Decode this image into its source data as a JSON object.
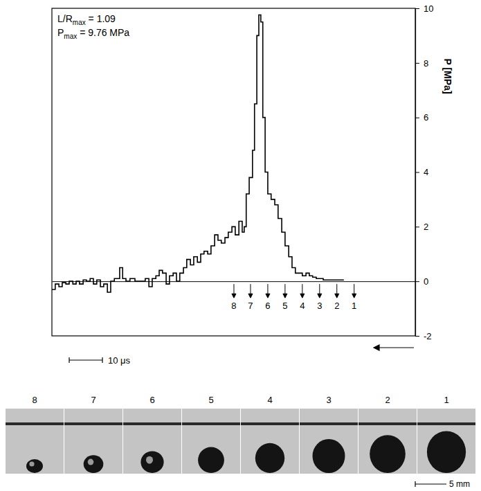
{
  "chart_data": {
    "type": "line",
    "annotations": [
      {
        "text": "L/R",
        "sub": "max",
        "tail": " = 1.09"
      },
      {
        "text": "P",
        "sub": "max",
        "tail": " = 9.76 MPa"
      }
    ],
    "y_label": "P [MPa]",
    "x": [
      0,
      1.0,
      2.1,
      3.1,
      4.2,
      5.2,
      6.3,
      7.3,
      8.3,
      9.4,
      10.4,
      11.5,
      12.5,
      13.5,
      14.6,
      15.6,
      16.7,
      17.7,
      18.8,
      19.8,
      20.4,
      21.3,
      22.3,
      23.5,
      25.0,
      26.0,
      27.1,
      28.1,
      29.2,
      30.2,
      31.3,
      32.3,
      33.3,
      34.4,
      35.4,
      36.5,
      37.5,
      38.5,
      39.6,
      40.6,
      41.7,
      42.7,
      43.8,
      44.8,
      45.8,
      46.9,
      47.9,
      49.0,
      50.0,
      51.0,
      52.1,
      53.1,
      54.2,
      55.2,
      56.3,
      57.3,
      57.9,
      58.5,
      59.4,
      60.4,
      61.0,
      61.7,
      62.3,
      62.9,
      63.5,
      64.2,
      65.0,
      66.0,
      67.1,
      68.1,
      69.2,
      70.2,
      71.3,
      72.3,
      73.3,
      74.4,
      75.4,
      76.5,
      77.5,
      78.5,
      79.6,
      80.6,
      81.7,
      82.7,
      83.8,
      84.8,
      86.5,
      87.9
    ],
    "values": [
      -0.3,
      -0.1,
      -0.2,
      -0.05,
      -0.1,
      0,
      -0.1,
      0,
      -0.1,
      0.05,
      0,
      0.1,
      -0.1,
      0.05,
      -0.2,
      -0.1,
      -0.4,
      0,
      0.1,
      0.1,
      0.5,
      0.1,
      0,
      0.1,
      0,
      0,
      0,
      0.1,
      -0.2,
      0.1,
      0.2,
      0.4,
      0.3,
      -0.1,
      0.2,
      0.3,
      0,
      0.3,
      0.5,
      0.8,
      0.6,
      0.9,
      0.7,
      1.0,
      1.1,
      1.0,
      1.3,
      1.7,
      1.5,
      1.4,
      1.6,
      1.8,
      2.0,
      1.7,
      2.2,
      1.8,
      2.0,
      3.2,
      3.8,
      4.8,
      6.5,
      9.0,
      9.76,
      9.5,
      6.0,
      4.0,
      3.2,
      3.0,
      2.8,
      2.3,
      1.8,
      1.3,
      0.9,
      0.5,
      0.3,
      0.3,
      0.2,
      0.3,
      0.2,
      0.15,
      0.1,
      0.1,
      0.05,
      0.05,
      0.05,
      0.05,
      0.05,
      0.05
    ],
    "color": "#000000",
    "line_style": "step",
    "xlim": [
      0,
      109.4
    ],
    "ylim": [
      -2,
      10
    ],
    "yticks": [
      -2,
      0,
      2,
      4,
      6,
      8,
      10
    ],
    "tick_labels": "y",
    "grid": false,
    "markers": {
      "labels": [
        "8",
        "7",
        "6",
        "5",
        "4",
        "3",
        "2",
        "1"
      ],
      "x": [
        54.8,
        59.8,
        65.0,
        70.2,
        75.4,
        80.6,
        85.8,
        91.0
      ]
    },
    "scale_bar": {
      "label": "10 μs",
      "length": 10
    }
  },
  "photos": {
    "labels": [
      "8",
      "7",
      "6",
      "5",
      "4",
      "3",
      "2",
      "1"
    ],
    "scale_bar": {
      "label": "5 mm",
      "length": 5
    }
  }
}
